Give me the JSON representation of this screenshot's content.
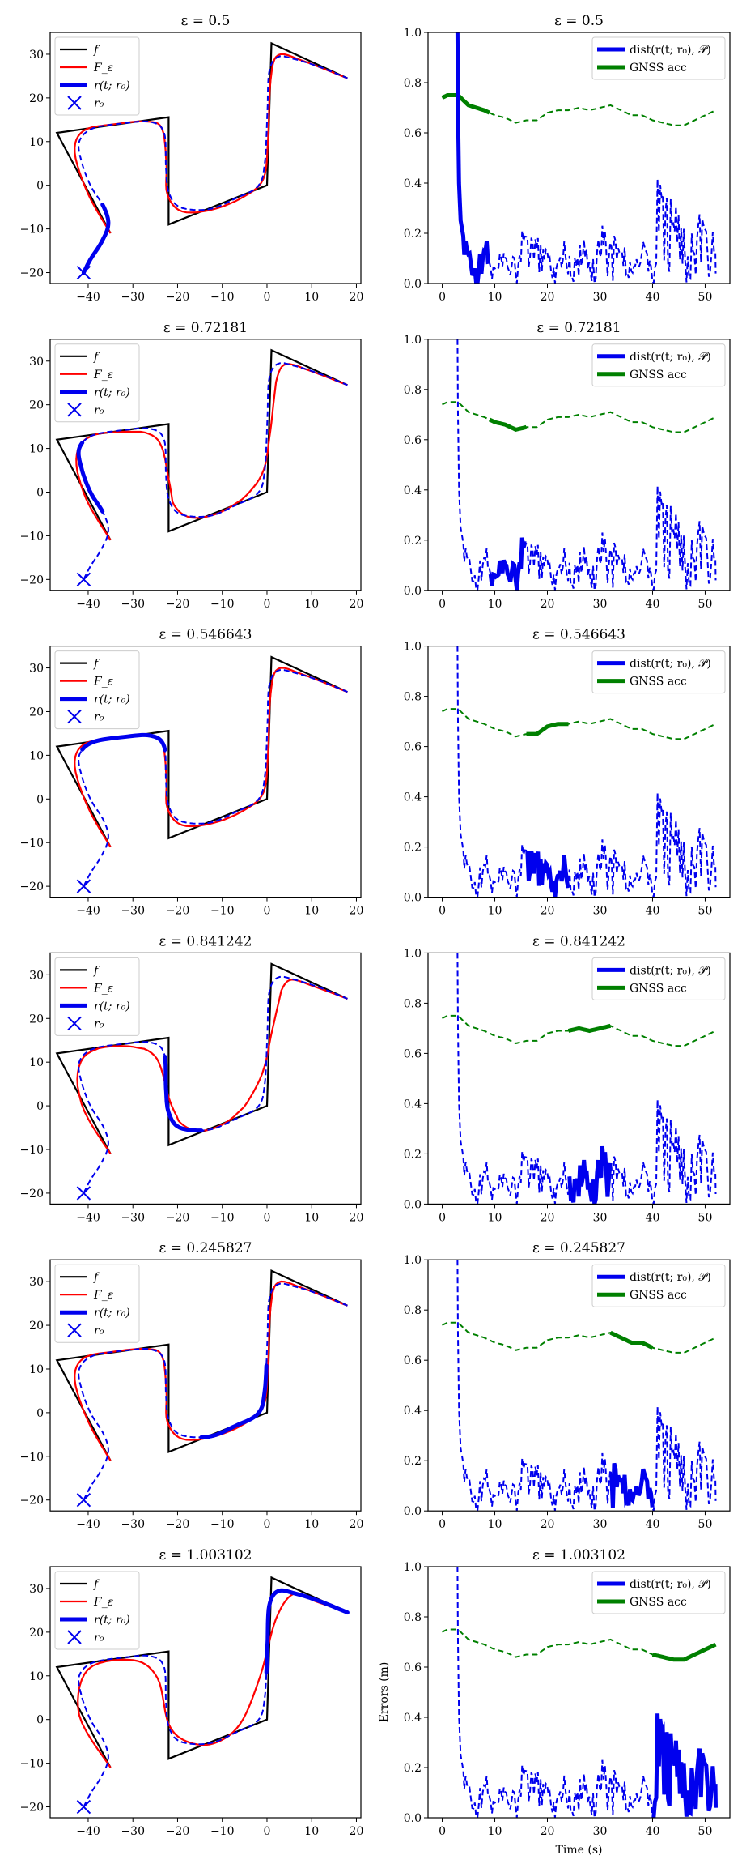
{
  "chart_data": {
    "type": "line",
    "layout": "6 rows x 2 columns",
    "legend_traj": {
      "f": "f",
      "F": "F_ε",
      "r": "r(t; r₀)",
      "r0": "r₀"
    },
    "legend_err": {
      "dist": "dist(r(t; r₀), 𝒫)",
      "gnss": "GNSS acc"
    },
    "traj_axes": {
      "xlim": [
        -48.5,
        21
      ],
      "ylim": [
        -22.5,
        35
      ],
      "xticks": [
        -40,
        -30,
        -20,
        -10,
        0,
        10,
        20
      ],
      "yticks": [
        -20,
        -10,
        0,
        10,
        20,
        30
      ],
      "polygon_f": [
        [
          -35,
          -11
        ],
        [
          -47,
          12
        ],
        [
          -22,
          15.6
        ],
        [
          -22,
          -9
        ],
        [
          0,
          0
        ],
        [
          1,
          32.5
        ],
        [
          18,
          24.5
        ]
      ],
      "start_r0": [
        -41,
        -20
      ]
    },
    "err_axes": {
      "xlim": [
        -2.7,
        54.7
      ],
      "ylim": [
        0,
        1.0
      ],
      "xticks": [
        0,
        10,
        20,
        30,
        40,
        50
      ],
      "yticks": [
        0.0,
        0.2,
        0.4,
        0.6,
        0.8,
        1.0
      ],
      "xlabel": "Time (s)",
      "ylabel": "Errors (m)",
      "gnss_profile": [
        [
          0,
          0.74
        ],
        [
          1,
          0.75
        ],
        [
          3,
          0.75
        ],
        [
          5,
          0.71
        ],
        [
          8,
          0.69
        ],
        [
          10,
          0.67
        ],
        [
          12,
          0.66
        ],
        [
          14,
          0.64
        ],
        [
          16,
          0.65
        ],
        [
          18,
          0.65
        ],
        [
          20,
          0.68
        ],
        [
          22,
          0.69
        ],
        [
          24,
          0.69
        ],
        [
          26,
          0.7
        ],
        [
          28,
          0.69
        ],
        [
          30,
          0.7
        ],
        [
          32,
          0.71
        ],
        [
          34,
          0.69
        ],
        [
          36,
          0.67
        ],
        [
          38,
          0.67
        ],
        [
          40,
          0.65
        ],
        [
          42,
          0.64
        ],
        [
          44,
          0.63
        ],
        [
          46,
          0.63
        ],
        [
          48,
          0.65
        ],
        [
          50,
          0.67
        ],
        [
          52,
          0.69
        ]
      ],
      "dist_start": [
        [
          2.9,
          1.0
        ],
        [
          3.0,
          0.7
        ],
        [
          3.2,
          0.4
        ],
        [
          3.5,
          0.25
        ],
        [
          4.0,
          0.19
        ]
      ],
      "dist_envelope_note": "noisy dashed blue series in range 0.0–0.45 for t = 4–52"
    },
    "panels": [
      {
        "epsilon": "0.5",
        "title": "ε = 0.5",
        "highlight_t": [
          0,
          9
        ]
      },
      {
        "epsilon": "0.72181",
        "title": "ε = 0.72181",
        "highlight_t": [
          9,
          16
        ]
      },
      {
        "epsilon": "0.546643",
        "title": "ε = 0.546643",
        "highlight_t": [
          16,
          24
        ]
      },
      {
        "epsilon": "0.841242",
        "title": "ε = 0.841242",
        "highlight_t": [
          24,
          32
        ]
      },
      {
        "epsilon": "0.245827",
        "title": "ε = 0.245827",
        "highlight_t": [
          32,
          40
        ]
      },
      {
        "epsilon": "1.003102",
        "title": "ε = 1.003102",
        "highlight_t": [
          40,
          52
        ]
      }
    ]
  }
}
